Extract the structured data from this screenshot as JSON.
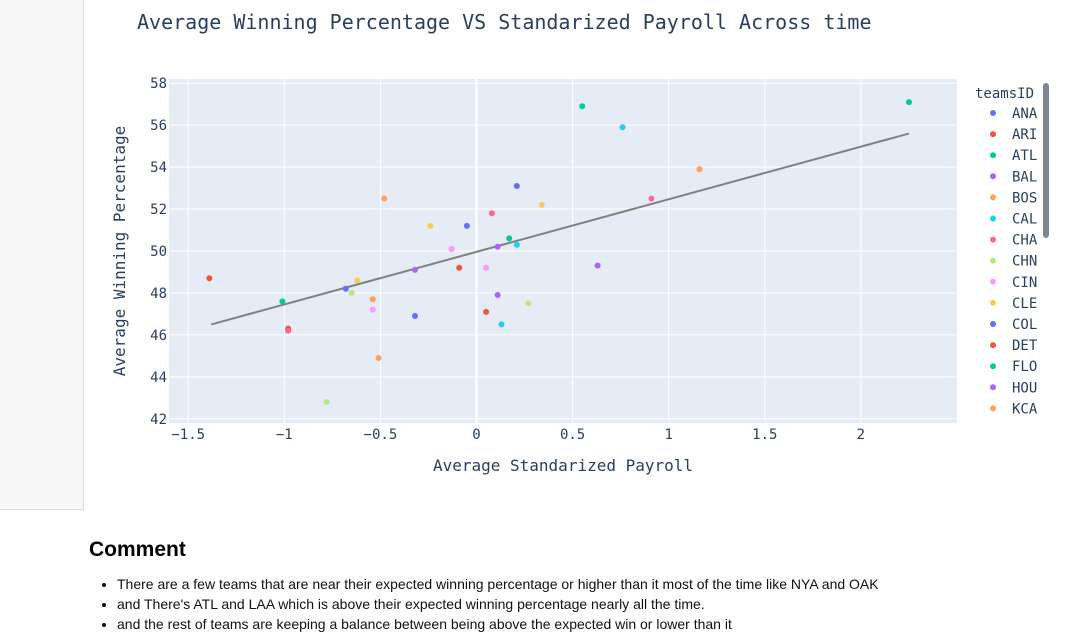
{
  "chart_data": {
    "type": "scatter",
    "title": "Average Winning Percentage VS Standarized Payroll Across time",
    "xlabel": "Average Standarized Payroll",
    "ylabel": "Average Winning Percentage",
    "xlim": [
      -1.6,
      2.5
    ],
    "ylim": [
      41.8,
      58.2
    ],
    "xticks": [
      -1.5,
      -1,
      -0.5,
      0,
      0.5,
      1,
      1.5,
      2
    ],
    "xtick_labels": [
      "−1.5",
      "−1",
      "−0.5",
      "0",
      "0.5",
      "1",
      "1.5",
      "2"
    ],
    "yticks": [
      42,
      44,
      46,
      48,
      50,
      52,
      54,
      56,
      58
    ],
    "ytick_labels": [
      "42",
      "44",
      "46",
      "48",
      "50",
      "52",
      "54",
      "56",
      "58"
    ],
    "grid": true,
    "legend_title": "teamsID",
    "legend_position": "right",
    "trendline": {
      "x": [
        -1.38,
        2.25
      ],
      "y": [
        46.5,
        55.6
      ],
      "color": "#808080"
    },
    "points": [
      {
        "x": 2.25,
        "y": 57.1,
        "color": "#00cc96"
      },
      {
        "x": 0.55,
        "y": 56.9,
        "color": "#00cc96"
      },
      {
        "x": 0.76,
        "y": 55.9,
        "color": "#19d3f3"
      },
      {
        "x": 1.16,
        "y": 53.9,
        "color": "#ffa15a"
      },
      {
        "x": 0.91,
        "y": 52.5,
        "color": "#ff6692"
      },
      {
        "x": 0.21,
        "y": 53.1,
        "color": "#636efa"
      },
      {
        "x": 0.34,
        "y": 52.2,
        "color": "#fecb52"
      },
      {
        "x": -0.48,
        "y": 52.5,
        "color": "#ffa15a"
      },
      {
        "x": 0.08,
        "y": 51.8,
        "color": "#ff6692"
      },
      {
        "x": -0.24,
        "y": 51.2,
        "color": "#fecb52"
      },
      {
        "x": -0.05,
        "y": 51.2,
        "color": "#636efa"
      },
      {
        "x": 0.17,
        "y": 50.6,
        "color": "#00cc96"
      },
      {
        "x": 0.21,
        "y": 50.3,
        "color": "#19d3f3"
      },
      {
        "x": 0.11,
        "y": 50.2,
        "color": "#ab63fa"
      },
      {
        "x": -0.13,
        "y": 50.1,
        "color": "#ff97ff"
      },
      {
        "x": 0.63,
        "y": 49.3,
        "color": "#ab63fa"
      },
      {
        "x": -0.09,
        "y": 49.2,
        "color": "#ef553b"
      },
      {
        "x": 0.05,
        "y": 49.2,
        "color": "#ff97ff"
      },
      {
        "x": -0.32,
        "y": 49.1,
        "color": "#ab63fa"
      },
      {
        "x": -1.39,
        "y": 48.7,
        "color": "#ef553b"
      },
      {
        "x": -0.62,
        "y": 48.6,
        "color": "#fecb52"
      },
      {
        "x": -0.68,
        "y": 48.2,
        "color": "#636efa"
      },
      {
        "x": -0.65,
        "y": 48.0,
        "color": "#b6e880"
      },
      {
        "x": 0.11,
        "y": 47.9,
        "color": "#ab63fa"
      },
      {
        "x": -1.01,
        "y": 47.6,
        "color": "#00cc96"
      },
      {
        "x": -0.54,
        "y": 47.7,
        "color": "#ffa15a"
      },
      {
        "x": 0.27,
        "y": 47.5,
        "color": "#b6e880"
      },
      {
        "x": -0.54,
        "y": 47.2,
        "color": "#ff97ff"
      },
      {
        "x": 0.05,
        "y": 47.1,
        "color": "#ef553b"
      },
      {
        "x": -0.32,
        "y": 46.9,
        "color": "#636efa"
      },
      {
        "x": 0.13,
        "y": 46.5,
        "color": "#19d3f3"
      },
      {
        "x": -0.98,
        "y": 46.3,
        "color": "#ef553b"
      },
      {
        "x": -0.98,
        "y": 46.2,
        "color": "#ff6692"
      },
      {
        "x": -0.51,
        "y": 44.9,
        "color": "#ffa15a"
      },
      {
        "x": -0.78,
        "y": 42.8,
        "color": "#b6e880"
      }
    ],
    "legend": [
      {
        "name": "ANA",
        "color": "#636efa"
      },
      {
        "name": "ARI",
        "color": "#ef553b"
      },
      {
        "name": "ATL",
        "color": "#00cc96"
      },
      {
        "name": "BAL",
        "color": "#ab63fa"
      },
      {
        "name": "BOS",
        "color": "#ffa15a"
      },
      {
        "name": "CAL",
        "color": "#19d3f3"
      },
      {
        "name": "CHA",
        "color": "#ff6692"
      },
      {
        "name": "CHN",
        "color": "#b6e880"
      },
      {
        "name": "CIN",
        "color": "#ff97ff"
      },
      {
        "name": "CLE",
        "color": "#fecb52"
      },
      {
        "name": "COL",
        "color": "#636efa"
      },
      {
        "name": "DET",
        "color": "#ef553b"
      },
      {
        "name": "FLO",
        "color": "#00cc96"
      },
      {
        "name": "HOU",
        "color": "#ab63fa"
      },
      {
        "name": "KCA",
        "color": "#ffa15a"
      }
    ]
  },
  "comment": {
    "heading": "Comment",
    "items": [
      "There are a few teams that are near their expected winning percentage or higher than it most of the time like NYA and OAK",
      "and There's ATL and LAA which is above their expected winning percentage nearly all the time.",
      "and the rest of teams are keeping a balance between being above the expected win or lower than it"
    ]
  }
}
